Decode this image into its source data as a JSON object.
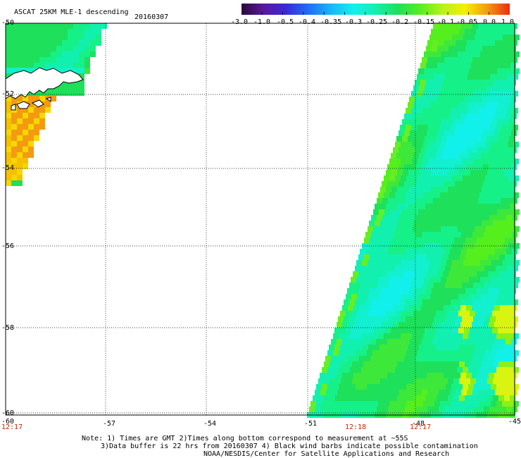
{
  "title": {
    "product": "ASCAT 25KM MLE-1 descending",
    "date": "20160307"
  },
  "colorbar": {
    "tick_labels": [
      "-3.0",
      "-1.0",
      "-0.5",
      "-0.4",
      "-0.35",
      "-0.3",
      "-0.25",
      "-0.2",
      "-0.15",
      "-0.1",
      "-0.05",
      "0.0",
      "1.0"
    ],
    "colors": [
      "#2a0a3a",
      "#5a18a0",
      "#3a2ad8",
      "#1f6ef5",
      "#16b7f7",
      "#12f0ec",
      "#12f0b0",
      "#1ee05a",
      "#56ef1e",
      "#b8f21a",
      "#f4f000",
      "#f49a10",
      "#ee2a10"
    ]
  },
  "map": {
    "lat_labels": [
      "-50",
      "-52",
      "-54",
      "-56",
      "-58",
      "-60"
    ],
    "lon_labels": [
      "-60",
      "-57",
      "-54",
      "-51",
      "-48",
      "-45"
    ],
    "lat_range": [
      -60,
      -50
    ],
    "lon_range": [
      -60,
      -45
    ],
    "grid": true,
    "swath_times": [
      "12:17",
      "12:18",
      "12:17"
    ],
    "land_color": "#ffffff",
    "coast_color": "#000000"
  },
  "notes": {
    "line1": "Note: 1) Times are GMT 2)Times along bottom correspond to measurement at ~55S",
    "line2": "3)Data buffer is 22 hrs from 20160307 4) Black wind barbs indicate possible contamination",
    "line3": "NOAA/NESDIS/Center for Satellite Applications and Research"
  }
}
